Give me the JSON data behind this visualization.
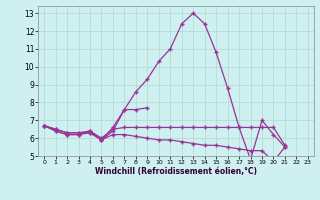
{
  "xlabel": "Windchill (Refroidissement éolien,°C)",
  "background_color": "#cef0f0",
  "grid_color": "#b0d8cc",
  "line_color": "#993399",
  "xlim": [
    -0.5,
    23.5
  ],
  "ylim": [
    5,
    13.4
  ],
  "xticks": [
    0,
    1,
    2,
    3,
    4,
    5,
    6,
    7,
    8,
    9,
    10,
    11,
    12,
    13,
    14,
    15,
    16,
    17,
    18,
    19,
    20,
    21,
    22,
    23
  ],
  "yticks": [
    5,
    6,
    7,
    8,
    9,
    10,
    11,
    12,
    13
  ],
  "line1_x": [
    0,
    1,
    2,
    3,
    4,
    5,
    6,
    7,
    8,
    9,
    10,
    11,
    12,
    13,
    14,
    15,
    16,
    17,
    18,
    19,
    20,
    21,
    22,
    23
  ],
  "line1_y": [
    6.7,
    6.4,
    6.2,
    6.2,
    6.3,
    5.9,
    6.4,
    7.6,
    8.6,
    9.3,
    10.3,
    11.0,
    12.4,
    13.0,
    12.4,
    10.8,
    8.8,
    6.6,
    4.8,
    7.0,
    6.2,
    5.5,
    null,
    null
  ],
  "line2_x": [
    0,
    1,
    2,
    3,
    4,
    5,
    6,
    7,
    8,
    9
  ],
  "line2_y": [
    6.7,
    6.4,
    6.2,
    6.2,
    6.4,
    5.9,
    6.6,
    7.6,
    7.6,
    7.7
  ],
  "line3_x": [
    0,
    1,
    2,
    3,
    4,
    5,
    6,
    7,
    8,
    9,
    10,
    11,
    12,
    13,
    14,
    15,
    16,
    17,
    18,
    19,
    20,
    21,
    22,
    23
  ],
  "line3_y": [
    6.7,
    6.5,
    6.3,
    6.3,
    6.4,
    6.0,
    6.5,
    6.6,
    6.6,
    6.6,
    6.6,
    6.6,
    6.6,
    6.6,
    6.6,
    6.6,
    6.6,
    6.6,
    6.6,
    6.6,
    6.6,
    5.6,
    null,
    null
  ],
  "line4_x": [
    0,
    1,
    2,
    3,
    4,
    5,
    6,
    7,
    8,
    9,
    10,
    11,
    12,
    13,
    14,
    15,
    16,
    17,
    18,
    19,
    20,
    21,
    22,
    23
  ],
  "line4_y": [
    6.7,
    6.5,
    6.3,
    6.3,
    6.3,
    5.9,
    6.2,
    6.2,
    6.1,
    6.0,
    5.9,
    5.9,
    5.8,
    5.7,
    5.6,
    5.6,
    5.5,
    5.4,
    5.3,
    5.3,
    4.7,
    5.5,
    null,
    null
  ]
}
